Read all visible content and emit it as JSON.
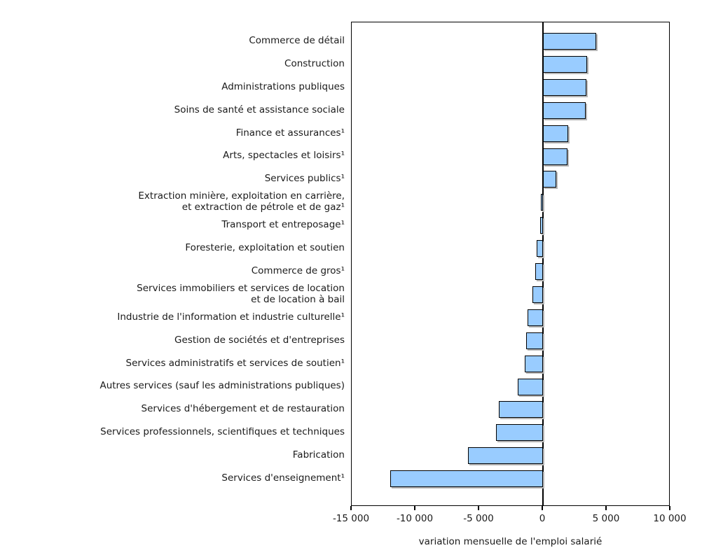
{
  "page": {
    "background": "#ffffff"
  },
  "chart_data": {
    "type": "bar",
    "orientation": "horizontal",
    "title": "",
    "xlabel": "variation mensuelle de l'emploi salarié",
    "ylabel": "",
    "xlim": [
      -15000,
      10000
    ],
    "grid": false,
    "legend": false,
    "bar_fill_color": "#99ccff",
    "bar_border_color": "#000000",
    "x_ticks": [
      {
        "value": -15000,
        "label": "-15 000"
      },
      {
        "value": -10000,
        "label": "-10 000"
      },
      {
        "value": -5000,
        "label": "-5 000"
      },
      {
        "value": 0,
        "label": "0"
      },
      {
        "value": 5000,
        "label": "5 000"
      },
      {
        "value": 10000,
        "label": "10 000"
      }
    ],
    "categories": [
      "Commerce de détail",
      "Construction",
      "Administrations publiques",
      "Soins de santé et assistance sociale",
      "Finance et assurances¹",
      "Arts, spectacles et loisirs¹",
      "Services publics¹",
      "Extraction minière, exploitation en carrière,\net extraction de pétrole et de gaz¹",
      "Transport et entreposage¹",
      "Foresterie, exploitation et soutien",
      "Commerce de gros¹",
      "Services immobiliers et services de location\net de location à bail",
      "Industrie de l'information et industrie culturelle¹",
      "Gestion de sociétés et d'entreprises",
      "Services administratifs et services de soutien¹",
      "Autres services (sauf les administrations publiques)",
      "Services d'hébergement et de restauration",
      "Services professionnels, scientifiques et techniques",
      "Fabrication",
      "Services d'enseignement¹"
    ],
    "values": [
      4200,
      3450,
      3400,
      3350,
      2000,
      1900,
      1050,
      -150,
      -200,
      -500,
      -600,
      -800,
      -1200,
      -1300,
      -1450,
      -2000,
      -3450,
      -3700,
      -5900,
      -12000
    ]
  }
}
